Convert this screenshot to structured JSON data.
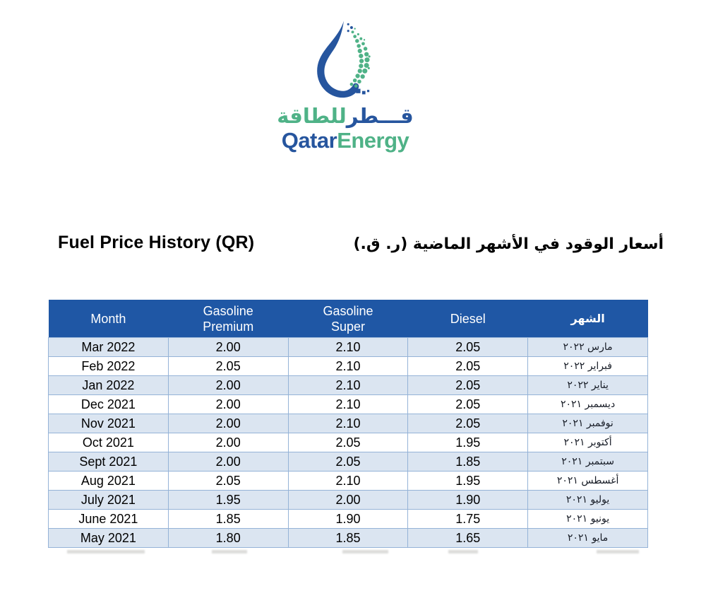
{
  "logo": {
    "arabic_qatar": "قـــطر",
    "arabic_energy": "للطاقة",
    "english_qatar": "Qatar",
    "english_energy": "Energy"
  },
  "titles": {
    "english": "Fuel Price History (QR)",
    "arabic": "أسعار الوقود في الأشهر الماضية (ر. ق.)"
  },
  "table": {
    "header": {
      "month": "Month",
      "gasoline_premium": "Gasoline\nPremium",
      "gasoline_super": "Gasoline\nSuper",
      "diesel": "Diesel",
      "month_ar": "الشهر"
    },
    "rows": [
      {
        "month": "Mar 2022",
        "premium": "2.00",
        "super": "2.10",
        "diesel": "2.05",
        "month_ar": "مارس ٢٠٢٢"
      },
      {
        "month": "Feb 2022",
        "premium": "2.05",
        "super": "2.10",
        "diesel": "2.05",
        "month_ar": "فبراير ٢٠٢٢"
      },
      {
        "month": "Jan 2022",
        "premium": "2.00",
        "super": "2.10",
        "diesel": "2.05",
        "month_ar": "يناير ٢٠٢٢"
      },
      {
        "month": "Dec 2021",
        "premium": "2.00",
        "super": "2.10",
        "diesel": "2.05",
        "month_ar": "ديسمبر ٢٠٢١"
      },
      {
        "month": "Nov 2021",
        "premium": "2.00",
        "super": "2.10",
        "diesel": "2.05",
        "month_ar": "نوفمبر ٢٠٢١"
      },
      {
        "month": "Oct 2021",
        "premium": "2.00",
        "super": "2.05",
        "diesel": "1.95",
        "month_ar": "أكتوبر ٢٠٢١"
      },
      {
        "month": "Sept 2021",
        "premium": "2.00",
        "super": "2.05",
        "diesel": "1.85",
        "month_ar": "سبتمبر ٢٠٢١"
      },
      {
        "month": "Aug 2021",
        "premium": "2.05",
        "super": "2.10",
        "diesel": "1.95",
        "month_ar": "أغسطس ٢٠٢١"
      },
      {
        "month": "July 2021",
        "premium": "1.95",
        "super": "2.00",
        "diesel": "1.90",
        "month_ar": "يوليو ٢٠٢١"
      },
      {
        "month": "June 2021",
        "premium": "1.85",
        "super": "1.90",
        "diesel": "1.75",
        "month_ar": "يونيو ٢٠٢١"
      },
      {
        "month": "May 2021",
        "premium": "1.80",
        "super": "1.85",
        "diesel": "1.65",
        "month_ar": "مايو ٢٠٢١"
      }
    ],
    "colors": {
      "header_bg": "#1F57A5",
      "stripe_bg": "#DBE5F1",
      "border": "#95B3D7",
      "brand_blue": "#26559E",
      "brand_green": "#4FB287"
    }
  }
}
